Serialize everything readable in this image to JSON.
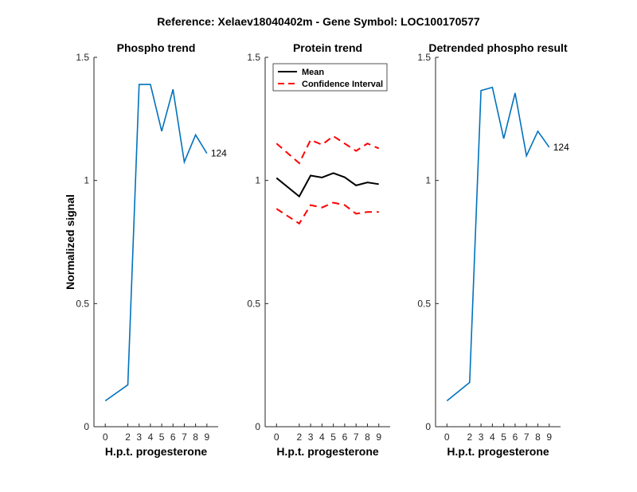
{
  "figure": {
    "title": "Reference:  Xelaev18040402m - Gene Symbol:  LOC100170577"
  },
  "chart_data": [
    {
      "type": "line",
      "title": "Phospho trend",
      "xlabel": "H.p.t. progesterone",
      "ylabel": "Normalized signal",
      "x": [
        0,
        2,
        3,
        4,
        5,
        6,
        7,
        8,
        9
      ],
      "xticks": [
        "0",
        "2",
        "3",
        "4",
        "5",
        "6",
        "7",
        "8",
        "9"
      ],
      "ylim": [
        0,
        1.5
      ],
      "yticks": [
        "0",
        "0.5",
        "1",
        "1.5"
      ],
      "series": [
        {
          "values": [
            0.105,
            0.17,
            1.39,
            1.39,
            1.2,
            1.37,
            1.075,
            1.185,
            1.11
          ],
          "color": "#0072BD",
          "style": "solid",
          "end_label": "124"
        }
      ]
    },
    {
      "type": "line",
      "title": "Protein trend",
      "xlabel": "H.p.t. progesterone",
      "ylabel": "",
      "x": [
        0,
        2,
        3,
        4,
        5,
        6,
        7,
        8,
        9
      ],
      "xticks": [
        "0",
        "2",
        "3",
        "4",
        "5",
        "6",
        "7",
        "8",
        "9"
      ],
      "ylim": [
        0,
        1.5
      ],
      "yticks": [
        "0",
        "0.5",
        "1",
        "1.5"
      ],
      "legend_position": "top-left",
      "series": [
        {
          "name": "Mean",
          "values": [
            1.01,
            0.935,
            1.02,
            1.012,
            1.03,
            1.013,
            0.98,
            0.992,
            0.985
          ],
          "color": "#000000",
          "style": "solid"
        },
        {
          "name": "Confidence Interval",
          "values": [
            1.15,
            1.07,
            1.165,
            1.145,
            1.18,
            1.15,
            1.12,
            1.15,
            1.13
          ],
          "color": "#FF0000",
          "style": "dashed"
        },
        {
          "name": "",
          "values": [
            0.885,
            0.825,
            0.9,
            0.89,
            0.91,
            0.9,
            0.865,
            0.872,
            0.872
          ],
          "color": "#FF0000",
          "style": "dashed"
        }
      ],
      "legend": [
        "Mean",
        "Confidence Interval"
      ]
    },
    {
      "type": "line",
      "title": "Detrended phospho result",
      "xlabel": "H.p.t. progesterone",
      "ylabel": "",
      "x": [
        0,
        2,
        3,
        4,
        5,
        6,
        7,
        8,
        9
      ],
      "xticks": [
        "0",
        "2",
        "3",
        "4",
        "5",
        "6",
        "7",
        "8",
        "9"
      ],
      "ylim": [
        0,
        1.5
      ],
      "yticks": [
        "0",
        "0.5",
        "1",
        "1.5"
      ],
      "series": [
        {
          "values": [
            0.105,
            0.18,
            1.365,
            1.378,
            1.17,
            1.355,
            1.1,
            1.2,
            1.135
          ],
          "color": "#0072BD",
          "style": "solid",
          "end_label": "124"
        }
      ]
    }
  ]
}
